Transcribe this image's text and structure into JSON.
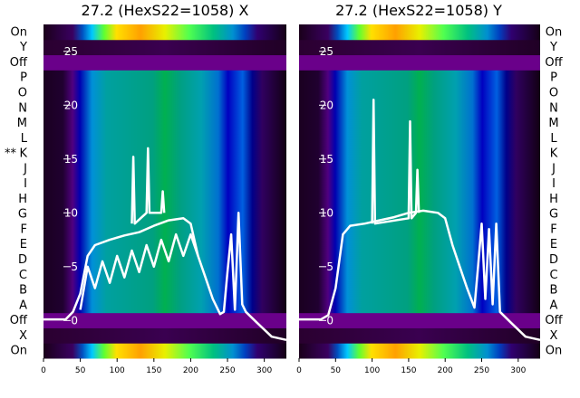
{
  "chart_data": [
    {
      "type": "heatmap",
      "title": "27.2 (HexS22=1058) X",
      "xlim": [
        0,
        330
      ],
      "ylim": [
        -3.5,
        27.5
      ],
      "x_ticks": [
        "0",
        "50",
        "100",
        "150",
        "200",
        "250",
        "300"
      ],
      "y_ticks": [
        "0",
        "5",
        "10",
        "15",
        "20",
        "25"
      ],
      "row_labels": [
        "On",
        "X",
        "Off",
        "A",
        "B",
        "C",
        "D",
        "E",
        "F",
        "G",
        "H",
        "I",
        "J",
        "K",
        "L",
        "M",
        "N",
        "O",
        "P",
        "Off",
        "Y",
        "On"
      ],
      "marker_row": "K",
      "marker_text": "**",
      "grid": false,
      "line_series": [
        {
          "x": [
            0,
            30,
            40,
            50,
            60,
            70,
            90,
            110,
            130,
            150,
            170,
            190,
            200,
            210,
            220,
            230,
            240,
            245,
            250,
            255,
            260,
            265,
            270,
            275,
            290,
            310,
            330
          ],
          "y": [
            0.1,
            0.1,
            0.8,
            2.5,
            6.0,
            7.0,
            7.5,
            7.9,
            8.2,
            8.8,
            9.3,
            9.5,
            9.0,
            6.0,
            4.0,
            2.0,
            0.6,
            0.8,
            4.5,
            8.0,
            1.0,
            10.0,
            1.5,
            0.8,
            -0.2,
            -1.5,
            -1.8
          ]
        },
        {
          "x": [
            50,
            60,
            70,
            80,
            90,
            100,
            110,
            120,
            130,
            140,
            150,
            160,
            170,
            180,
            190,
            200,
            210
          ],
          "y": [
            1.0,
            5.0,
            3.0,
            5.5,
            3.5,
            6.0,
            4.0,
            6.5,
            4.5,
            7.0,
            5.0,
            7.5,
            5.5,
            8.0,
            6.0,
            8.0,
            6.0
          ]
        },
        {
          "x": [
            120,
            122,
            124,
            140,
            142,
            144,
            160,
            162,
            164
          ],
          "y": [
            9.0,
            15.2,
            9.0,
            10.0,
            16.0,
            10.0,
            10.0,
            12.0,
            10.0
          ]
        }
      ]
    },
    {
      "type": "heatmap",
      "title": "27.2 (HexS22=1058) Y",
      "xlim": [
        0,
        330
      ],
      "ylim": [
        -3.5,
        27.5
      ],
      "x_ticks": [
        "0",
        "50",
        "100",
        "150",
        "200",
        "250",
        "300"
      ],
      "y_ticks": [
        "0",
        "5",
        "10",
        "15",
        "20",
        "25"
      ],
      "row_labels": [
        "On",
        "X",
        "Off",
        "A",
        "B",
        "C",
        "D",
        "E",
        "F",
        "G",
        "H",
        "I",
        "J",
        "K",
        "L",
        "M",
        "N",
        "O",
        "P",
        "Off",
        "Y",
        "On"
      ],
      "grid": false,
      "line_series": [
        {
          "x": [
            0,
            30,
            40,
            50,
            60,
            70,
            90,
            110,
            130,
            150,
            170,
            190,
            200,
            210,
            220,
            230,
            240,
            245,
            250,
            255,
            260,
            265,
            270,
            275,
            290,
            310,
            330
          ],
          "y": [
            0.1,
            0.1,
            0.5,
            3.0,
            8.0,
            8.8,
            9.0,
            9.3,
            9.6,
            10.0,
            10.2,
            10.0,
            9.5,
            7.0,
            5.0,
            3.0,
            1.2,
            5.0,
            9.0,
            2.0,
            8.5,
            1.5,
            9.0,
            0.8,
            -0.2,
            -1.5,
            -1.8
          ]
        },
        {
          "x": [
            100,
            102,
            104,
            150,
            152,
            154,
            160,
            162,
            164
          ],
          "y": [
            9.0,
            20.5,
            9.0,
            9.5,
            18.5,
            9.5,
            10.0,
            14.0,
            10.0
          ]
        }
      ]
    }
  ]
}
